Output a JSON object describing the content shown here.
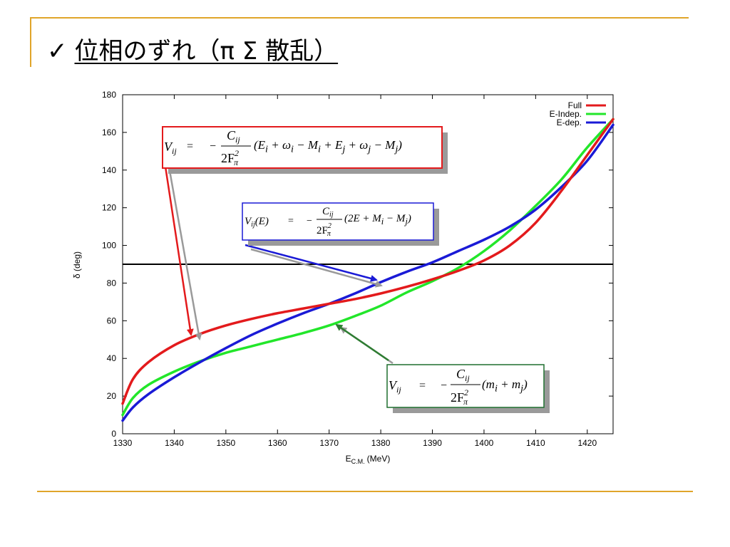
{
  "slide": {
    "check_mark": "✓",
    "title": "位相のずれ（π Σ 散乱）"
  },
  "chart_data": {
    "type": "line",
    "xlabel": "E_C.M. (MeV)",
    "xlabel_main": "E",
    "xlabel_sub": "C.M.",
    "xlabel_unit": "(MeV)",
    "ylabel": "δ (deg)",
    "xlim": [
      1330,
      1425
    ],
    "ylim": [
      0,
      180
    ],
    "x_ticks": [
      1330,
      1340,
      1350,
      1360,
      1370,
      1380,
      1390,
      1400,
      1410,
      1420
    ],
    "y_ticks": [
      0,
      20,
      40,
      60,
      80,
      100,
      120,
      140,
      160,
      180
    ],
    "grid": false,
    "legend_position": "top-right",
    "reference_line": {
      "y": 90,
      "color": "#000000"
    },
    "series": [
      {
        "name": "Full",
        "color": "#e31a1c",
        "x": [
          1330,
          1332,
          1335,
          1340,
          1345,
          1350,
          1355,
          1360,
          1365,
          1370,
          1375,
          1380,
          1385,
          1390,
          1395,
          1400,
          1405,
          1410,
          1415,
          1420,
          1425
        ],
        "y": [
          16,
          29,
          38,
          47,
          53,
          57.5,
          61,
          64,
          66.5,
          69,
          71.5,
          74.5,
          78,
          82,
          86.5,
          92,
          100,
          112,
          129,
          148,
          167
        ]
      },
      {
        "name": "E-Indep.",
        "color": "#22e62a",
        "x": [
          1330,
          1332,
          1335,
          1340,
          1345,
          1350,
          1355,
          1360,
          1365,
          1370,
          1375,
          1380,
          1385,
          1390,
          1395,
          1400,
          1405,
          1410,
          1415,
          1420,
          1425
        ],
        "y": [
          10,
          19,
          26,
          33,
          38.5,
          43,
          46.5,
          50,
          53.5,
          57.5,
          62.5,
          68,
          75,
          81,
          88,
          97,
          108,
          121,
          135,
          152,
          167
        ]
      },
      {
        "name": "E-dep.",
        "color": "#1a1ad6",
        "x": [
          1330,
          1332,
          1335,
          1340,
          1345,
          1350,
          1355,
          1360,
          1365,
          1370,
          1375,
          1380,
          1385,
          1390,
          1395,
          1400,
          1405,
          1410,
          1415,
          1420,
          1425
        ],
        "y": [
          7,
          14,
          21,
          30,
          38,
          45.5,
          52.5,
          58.5,
          64,
          69,
          74.5,
          80.5,
          86,
          91,
          97,
          103,
          110,
          119,
          131,
          145,
          164
        ]
      }
    ],
    "annotations": [
      {
        "id": "full",
        "border": "#e31a1c",
        "arrow": "#e31a1c",
        "lhs": "V",
        "lhs_sub": "ij",
        "rel": "=",
        "minus": "−",
        "num": "C",
        "num_sub": "ij",
        "den": "2F",
        "den_sub": "π",
        "den_sup": "2",
        "body": "(E<sub>i</sub> + ω<sub>i</sub> − M<sub>i</sub> + E<sub>j</sub> + ω<sub>j</sub> − M<sub>j</sub>)"
      },
      {
        "id": "edep",
        "border": "#1a1ad6",
        "arrow": "#1a1ad6",
        "lhs": "V",
        "lhs_sub": "ij",
        "lhs_arg": "(E)",
        "rel": "=",
        "minus": "−",
        "num": "C",
        "num_sub": "ij",
        "den": "2F",
        "den_sub": "π",
        "den_sup": "2",
        "body": "(2E + M<sub>i</sub> − M<sub>j</sub>)"
      },
      {
        "id": "eindep",
        "border": "#1f6f2f",
        "arrow": "#2e7d32",
        "lhs": "V",
        "lhs_sub": "ij",
        "rel": "=",
        "minus": "−",
        "num": "C",
        "num_sub": "ij",
        "den": "2F",
        "den_sub": "π",
        "den_sup": "2",
        "body": "(m<sub>i</sub> + m<sub>j</sub>)"
      }
    ]
  }
}
